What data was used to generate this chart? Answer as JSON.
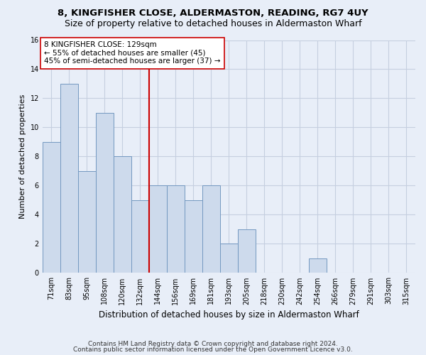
{
  "title": "8, KINGFISHER CLOSE, ALDERMASTON, READING, RG7 4UY",
  "subtitle": "Size of property relative to detached houses in Aldermaston Wharf",
  "xlabel": "Distribution of detached houses by size in Aldermaston Wharf",
  "ylabel": "Number of detached properties",
  "categories": [
    "71sqm",
    "83sqm",
    "95sqm",
    "108sqm",
    "120sqm",
    "132sqm",
    "144sqm",
    "156sqm",
    "169sqm",
    "181sqm",
    "193sqm",
    "205sqm",
    "218sqm",
    "230sqm",
    "242sqm",
    "254sqm",
    "266sqm",
    "279sqm",
    "291sqm",
    "303sqm",
    "315sqm"
  ],
  "values": [
    9,
    13,
    7,
    11,
    8,
    5,
    6,
    6,
    5,
    6,
    2,
    3,
    0,
    0,
    0,
    1,
    0,
    0,
    0,
    0,
    0
  ],
  "bar_color": "#cddaec",
  "bar_edge_color": "#7398c0",
  "vline_x": 5.5,
  "vline_color": "#cc0000",
  "annotation_line1": "8 KINGFISHER CLOSE: 129sqm",
  "annotation_line2": "← 55% of detached houses are smaller (45)",
  "annotation_line3": "45% of semi-detached houses are larger (37) →",
  "ylim": [
    0,
    16
  ],
  "yticks": [
    0,
    2,
    4,
    6,
    8,
    10,
    12,
    14,
    16
  ],
  "footer1": "Contains HM Land Registry data © Crown copyright and database right 2024.",
  "footer2": "Contains public sector information licensed under the Open Government Licence v3.0.",
  "title_fontsize": 9.5,
  "subtitle_fontsize": 9,
  "xlabel_fontsize": 8.5,
  "ylabel_fontsize": 8,
  "tick_fontsize": 7,
  "annotation_fontsize": 7.5,
  "footer_fontsize": 6.5,
  "background_color": "#e8eef8",
  "plot_bg_color": "#e8eef8",
  "grid_color": "#c5cfe0"
}
